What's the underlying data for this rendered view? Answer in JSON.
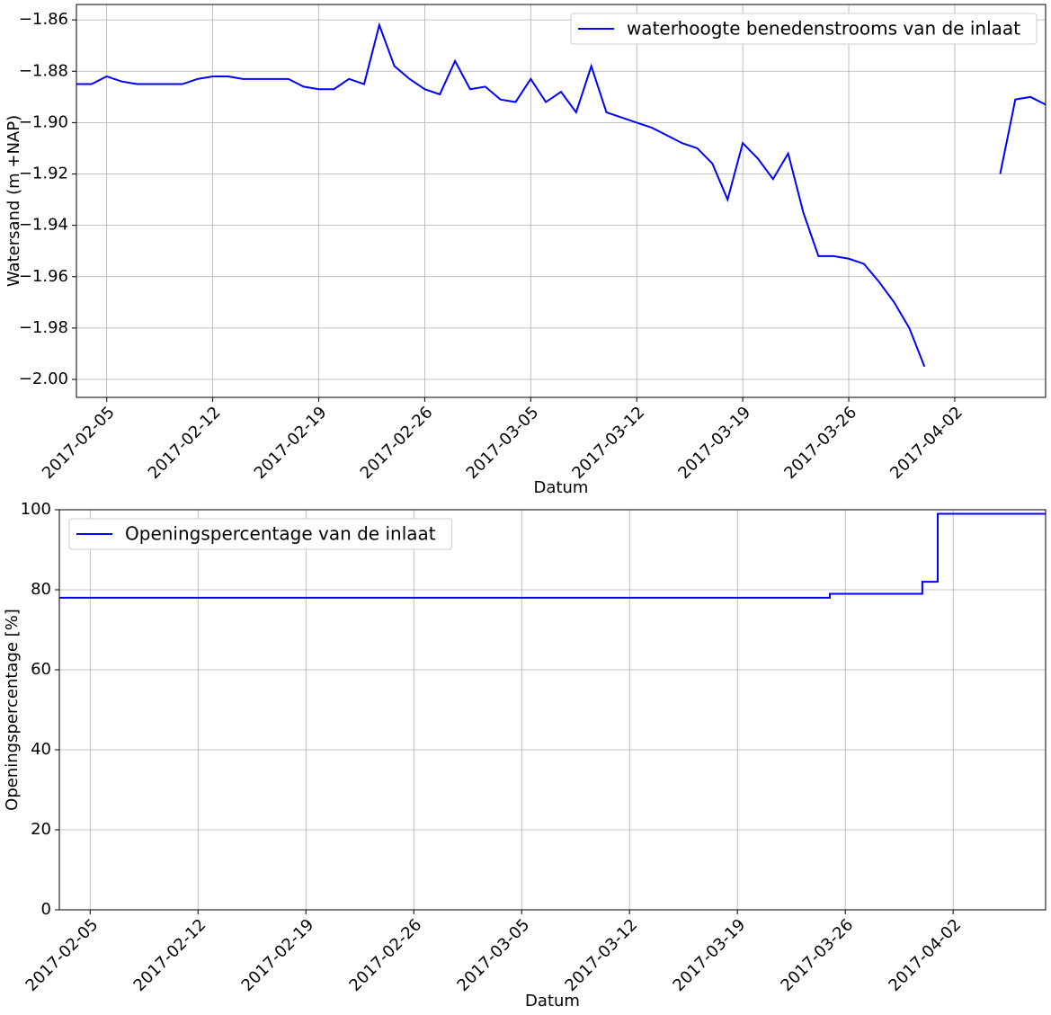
{
  "chart_data": [
    {
      "type": "line",
      "x": [
        "2017-02-03",
        "2017-02-04",
        "2017-02-05",
        "2017-02-06",
        "2017-02-07",
        "2017-02-08",
        "2017-02-09",
        "2017-02-10",
        "2017-02-11",
        "2017-02-12",
        "2017-02-13",
        "2017-02-14",
        "2017-02-15",
        "2017-02-16",
        "2017-02-17",
        "2017-02-18",
        "2017-02-19",
        "2017-02-20",
        "2017-02-21",
        "2017-02-22",
        "2017-02-23",
        "2017-02-24",
        "2017-02-25",
        "2017-02-26",
        "2017-02-27",
        "2017-02-28",
        "2017-03-01",
        "2017-03-02",
        "2017-03-03",
        "2017-03-04",
        "2017-03-05",
        "2017-03-06",
        "2017-03-07",
        "2017-03-08",
        "2017-03-09",
        "2017-03-10",
        "2017-03-11",
        "2017-03-12",
        "2017-03-13",
        "2017-03-14",
        "2017-03-15",
        "2017-03-16",
        "2017-03-17",
        "2017-03-18",
        "2017-03-19",
        "2017-03-20",
        "2017-03-21",
        "2017-03-22",
        "2017-03-23",
        "2017-03-24",
        "2017-03-25",
        "2017-03-26",
        "2017-03-27",
        "2017-03-28",
        "2017-03-29",
        "2017-03-30",
        "2017-03-31",
        "2017-04-01",
        "2017-04-02",
        "2017-04-03",
        "2017-04-04",
        "2017-04-05",
        "2017-04-06",
        "2017-04-07",
        "2017-04-08"
      ],
      "series": [
        {
          "name": "waterhoogte benedenstrooms van de inlaat",
          "color": "#0000ff",
          "values": [
            -1.885,
            -1.885,
            -1.882,
            -1.884,
            -1.885,
            -1.885,
            -1.885,
            -1.885,
            -1.883,
            -1.882,
            -1.882,
            -1.883,
            -1.883,
            -1.883,
            -1.883,
            -1.886,
            -1.887,
            -1.887,
            -1.883,
            -1.885,
            -1.862,
            -1.878,
            -1.883,
            -1.887,
            -1.889,
            -1.876,
            -1.887,
            -1.886,
            -1.891,
            -1.892,
            -1.883,
            -1.892,
            -1.888,
            -1.896,
            -1.878,
            -1.896,
            -1.898,
            -1.9,
            -1.902,
            -1.905,
            -1.908,
            -1.91,
            -1.916,
            -1.93,
            -1.908,
            -1.914,
            -1.922,
            -1.912,
            -1.935,
            -1.952,
            -1.952,
            -1.953,
            -1.955,
            -1.962,
            -1.97,
            -1.98,
            -1.995,
            null,
            null,
            null,
            null,
            -1.92,
            -1.891,
            -1.89,
            -1.893
          ]
        }
      ],
      "xlim": [
        "2017-02-03",
        "2017-04-08"
      ],
      "xticks": [
        "2017-02-05",
        "2017-02-12",
        "2017-02-19",
        "2017-02-26",
        "2017-03-05",
        "2017-03-12",
        "2017-03-19",
        "2017-03-26",
        "2017-04-02"
      ],
      "ylim": [
        -2.007,
        -1.854
      ],
      "yticks": [
        {
          "value": -2.0,
          "label": "−2.00"
        },
        {
          "value": -1.98,
          "label": "−1.98"
        },
        {
          "value": -1.96,
          "label": "−1.96"
        },
        {
          "value": -1.94,
          "label": "−1.94"
        },
        {
          "value": -1.92,
          "label": "−1.92"
        },
        {
          "value": -1.9,
          "label": "−1.90"
        },
        {
          "value": -1.88,
          "label": "−1.88"
        },
        {
          "value": -1.86,
          "label": "−1.86"
        }
      ],
      "x_label": "Datum",
      "y_label": "Watersand (m +NAP)",
      "grid": true,
      "legend": "upper right",
      "drawstyle": "default"
    },
    {
      "type": "line",
      "x": [
        "2017-02-03",
        "2017-02-04",
        "2017-02-05",
        "2017-02-06",
        "2017-02-07",
        "2017-02-08",
        "2017-02-09",
        "2017-02-10",
        "2017-02-11",
        "2017-02-12",
        "2017-02-13",
        "2017-02-14",
        "2017-02-15",
        "2017-02-16",
        "2017-02-17",
        "2017-02-18",
        "2017-02-19",
        "2017-02-20",
        "2017-02-21",
        "2017-02-22",
        "2017-02-23",
        "2017-02-24",
        "2017-02-25",
        "2017-02-26",
        "2017-02-27",
        "2017-02-28",
        "2017-03-01",
        "2017-03-02",
        "2017-03-03",
        "2017-03-04",
        "2017-03-05",
        "2017-03-06",
        "2017-03-07",
        "2017-03-08",
        "2017-03-09",
        "2017-03-10",
        "2017-03-11",
        "2017-03-12",
        "2017-03-13",
        "2017-03-14",
        "2017-03-15",
        "2017-03-16",
        "2017-03-17",
        "2017-03-18",
        "2017-03-19",
        "2017-03-20",
        "2017-03-21",
        "2017-03-22",
        "2017-03-23",
        "2017-03-24",
        "2017-03-25",
        "2017-03-26",
        "2017-03-27",
        "2017-03-28",
        "2017-03-29",
        "2017-03-30",
        "2017-03-31",
        "2017-04-01",
        "2017-04-02",
        "2017-04-03",
        "2017-04-04",
        "2017-04-05",
        "2017-04-06",
        "2017-04-07",
        "2017-04-08"
      ],
      "series": [
        {
          "name": "Openingspercentage van de inlaat",
          "color": "#0000ff",
          "values": [
            78,
            78,
            78,
            78,
            78,
            78,
            78,
            78,
            78,
            78,
            78,
            78,
            78,
            78,
            78,
            78,
            78,
            78,
            78,
            78,
            78,
            78,
            78,
            78,
            78,
            78,
            78,
            78,
            78,
            78,
            78,
            78,
            78,
            78,
            78,
            78,
            78,
            78,
            78,
            78,
            78,
            78,
            78,
            78,
            78,
            78,
            78,
            78,
            78,
            78,
            79,
            79,
            79,
            79,
            79,
            79,
            82,
            99,
            99,
            99,
            99,
            99,
            99,
            99,
            99
          ]
        }
      ],
      "xlim": [
        "2017-02-03",
        "2017-04-08"
      ],
      "xticks": [
        "2017-02-05",
        "2017-02-12",
        "2017-02-19",
        "2017-02-26",
        "2017-03-05",
        "2017-03-12",
        "2017-03-19",
        "2017-03-26",
        "2017-04-02"
      ],
      "ylim": [
        0,
        100
      ],
      "yticks": [
        0,
        20,
        40,
        60,
        80,
        100
      ],
      "x_label": "Datum",
      "y_label": "Openingspercentage [%]",
      "grid": true,
      "legend": "upper left",
      "drawstyle": "steps-post"
    }
  ]
}
